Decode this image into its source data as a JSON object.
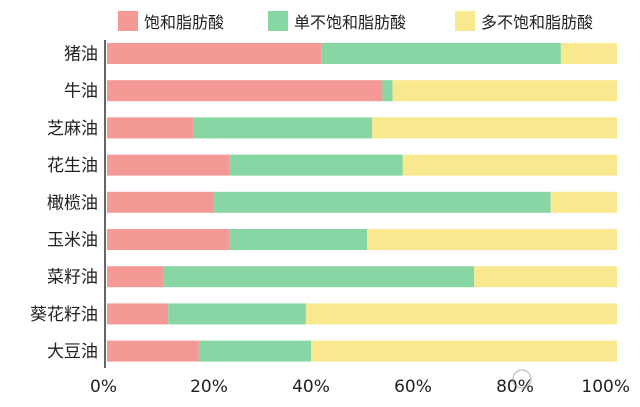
{
  "chart_data": {
    "type": "bar",
    "orientation": "horizontal",
    "stacked": true,
    "title": "",
    "xlabel": "",
    "ylabel": "",
    "xlim": [
      0,
      100
    ],
    "x_ticks": [
      "0%",
      "20%",
      "40%",
      "60%",
      "80%",
      "100%"
    ],
    "legend_position": "top",
    "grid": false,
    "categories": [
      "猪油",
      "牛油",
      "芝麻油",
      "花生油",
      "橄榄油",
      "玉米油",
      "菜籽油",
      "葵花籽油",
      "大豆油"
    ],
    "series": [
      {
        "name": "饱和脂肪酸",
        "color": "#f49996",
        "values": [
          42,
          54,
          17,
          24,
          21,
          24,
          11,
          12,
          18
        ]
      },
      {
        "name": "单不饱和脂肪酸",
        "color": "#88d6a4",
        "values": [
          47,
          2,
          35,
          34,
          66,
          27,
          61,
          27,
          22
        ]
      },
      {
        "name": "多不饱和脂肪酸",
        "color": "#f8e88e",
        "values": [
          11,
          44,
          48,
          42,
          13,
          49,
          28,
          61,
          60
        ]
      }
    ]
  }
}
